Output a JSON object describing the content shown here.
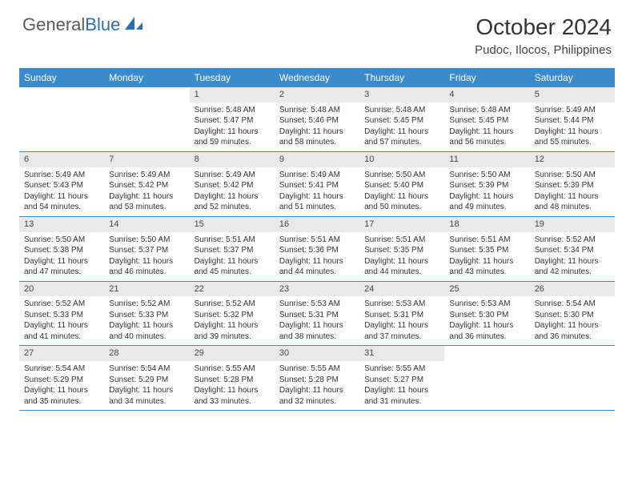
{
  "logo": {
    "text_general": "General",
    "text_blue": "Blue"
  },
  "title": "October 2024",
  "location": "Pudoc, Ilocos, Philippines",
  "colors": {
    "header_bg": "#3b8bcc",
    "header_text": "#ffffff",
    "daynum_bg": "#e9e9e9",
    "border": "#3b8bcc",
    "body_text": "#333333",
    "logo_gray": "#5a5a5a",
    "logo_blue": "#2d6fb3"
  },
  "typography": {
    "title_fontsize": 28,
    "location_fontsize": 15,
    "header_fontsize": 12,
    "daynum_fontsize": 11,
    "cell_fontsize": 10
  },
  "weekdays": [
    "Sunday",
    "Monday",
    "Tuesday",
    "Wednesday",
    "Thursday",
    "Friday",
    "Saturday"
  ],
  "weeks": [
    [
      null,
      null,
      {
        "n": "1",
        "sr": "Sunrise: 5:48 AM",
        "ss": "Sunset: 5:47 PM",
        "dl": "Daylight: 11 hours and 59 minutes."
      },
      {
        "n": "2",
        "sr": "Sunrise: 5:48 AM",
        "ss": "Sunset: 5:46 PM",
        "dl": "Daylight: 11 hours and 58 minutes."
      },
      {
        "n": "3",
        "sr": "Sunrise: 5:48 AM",
        "ss": "Sunset: 5:45 PM",
        "dl": "Daylight: 11 hours and 57 minutes."
      },
      {
        "n": "4",
        "sr": "Sunrise: 5:48 AM",
        "ss": "Sunset: 5:45 PM",
        "dl": "Daylight: 11 hours and 56 minutes."
      },
      {
        "n": "5",
        "sr": "Sunrise: 5:49 AM",
        "ss": "Sunset: 5:44 PM",
        "dl": "Daylight: 11 hours and 55 minutes."
      }
    ],
    [
      {
        "n": "6",
        "sr": "Sunrise: 5:49 AM",
        "ss": "Sunset: 5:43 PM",
        "dl": "Daylight: 11 hours and 54 minutes."
      },
      {
        "n": "7",
        "sr": "Sunrise: 5:49 AM",
        "ss": "Sunset: 5:42 PM",
        "dl": "Daylight: 11 hours and 53 minutes."
      },
      {
        "n": "8",
        "sr": "Sunrise: 5:49 AM",
        "ss": "Sunset: 5:42 PM",
        "dl": "Daylight: 11 hours and 52 minutes."
      },
      {
        "n": "9",
        "sr": "Sunrise: 5:49 AM",
        "ss": "Sunset: 5:41 PM",
        "dl": "Daylight: 11 hours and 51 minutes."
      },
      {
        "n": "10",
        "sr": "Sunrise: 5:50 AM",
        "ss": "Sunset: 5:40 PM",
        "dl": "Daylight: 11 hours and 50 minutes."
      },
      {
        "n": "11",
        "sr": "Sunrise: 5:50 AM",
        "ss": "Sunset: 5:39 PM",
        "dl": "Daylight: 11 hours and 49 minutes."
      },
      {
        "n": "12",
        "sr": "Sunrise: 5:50 AM",
        "ss": "Sunset: 5:39 PM",
        "dl": "Daylight: 11 hours and 48 minutes."
      }
    ],
    [
      {
        "n": "13",
        "sr": "Sunrise: 5:50 AM",
        "ss": "Sunset: 5:38 PM",
        "dl": "Daylight: 11 hours and 47 minutes."
      },
      {
        "n": "14",
        "sr": "Sunrise: 5:50 AM",
        "ss": "Sunset: 5:37 PM",
        "dl": "Daylight: 11 hours and 46 minutes."
      },
      {
        "n": "15",
        "sr": "Sunrise: 5:51 AM",
        "ss": "Sunset: 5:37 PM",
        "dl": "Daylight: 11 hours and 45 minutes."
      },
      {
        "n": "16",
        "sr": "Sunrise: 5:51 AM",
        "ss": "Sunset: 5:36 PM",
        "dl": "Daylight: 11 hours and 44 minutes."
      },
      {
        "n": "17",
        "sr": "Sunrise: 5:51 AM",
        "ss": "Sunset: 5:35 PM",
        "dl": "Daylight: 11 hours and 44 minutes."
      },
      {
        "n": "18",
        "sr": "Sunrise: 5:51 AM",
        "ss": "Sunset: 5:35 PM",
        "dl": "Daylight: 11 hours and 43 minutes."
      },
      {
        "n": "19",
        "sr": "Sunrise: 5:52 AM",
        "ss": "Sunset: 5:34 PM",
        "dl": "Daylight: 11 hours and 42 minutes."
      }
    ],
    [
      {
        "n": "20",
        "sr": "Sunrise: 5:52 AM",
        "ss": "Sunset: 5:33 PM",
        "dl": "Daylight: 11 hours and 41 minutes."
      },
      {
        "n": "21",
        "sr": "Sunrise: 5:52 AM",
        "ss": "Sunset: 5:33 PM",
        "dl": "Daylight: 11 hours and 40 minutes."
      },
      {
        "n": "22",
        "sr": "Sunrise: 5:52 AM",
        "ss": "Sunset: 5:32 PM",
        "dl": "Daylight: 11 hours and 39 minutes."
      },
      {
        "n": "23",
        "sr": "Sunrise: 5:53 AM",
        "ss": "Sunset: 5:31 PM",
        "dl": "Daylight: 11 hours and 38 minutes."
      },
      {
        "n": "24",
        "sr": "Sunrise: 5:53 AM",
        "ss": "Sunset: 5:31 PM",
        "dl": "Daylight: 11 hours and 37 minutes."
      },
      {
        "n": "25",
        "sr": "Sunrise: 5:53 AM",
        "ss": "Sunset: 5:30 PM",
        "dl": "Daylight: 11 hours and 36 minutes."
      },
      {
        "n": "26",
        "sr": "Sunrise: 5:54 AM",
        "ss": "Sunset: 5:30 PM",
        "dl": "Daylight: 11 hours and 36 minutes."
      }
    ],
    [
      {
        "n": "27",
        "sr": "Sunrise: 5:54 AM",
        "ss": "Sunset: 5:29 PM",
        "dl": "Daylight: 11 hours and 35 minutes."
      },
      {
        "n": "28",
        "sr": "Sunrise: 5:54 AM",
        "ss": "Sunset: 5:29 PM",
        "dl": "Daylight: 11 hours and 34 minutes."
      },
      {
        "n": "29",
        "sr": "Sunrise: 5:55 AM",
        "ss": "Sunset: 5:28 PM",
        "dl": "Daylight: 11 hours and 33 minutes."
      },
      {
        "n": "30",
        "sr": "Sunrise: 5:55 AM",
        "ss": "Sunset: 5:28 PM",
        "dl": "Daylight: 11 hours and 32 minutes."
      },
      {
        "n": "31",
        "sr": "Sunrise: 5:55 AM",
        "ss": "Sunset: 5:27 PM",
        "dl": "Daylight: 11 hours and 31 minutes."
      },
      null,
      null
    ]
  ]
}
